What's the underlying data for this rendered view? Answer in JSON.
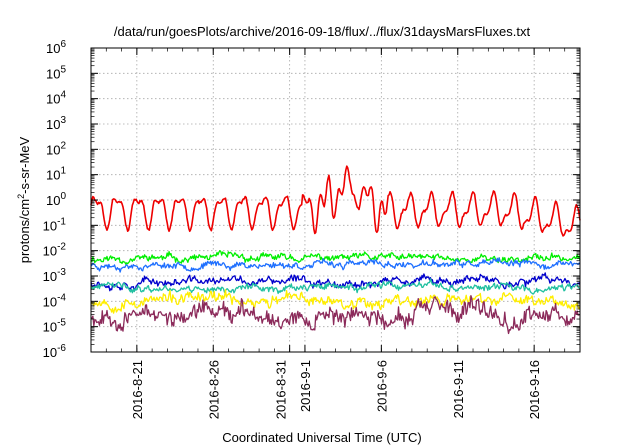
{
  "chart_data": {
    "type": "line",
    "title": "/data/run/goesPlots/archive/2016-09-18/flux/../flux/31daysMarsFluxes.txt",
    "xlabel": "Coordinated Universal Time (UTC)",
    "ylabel_parts": [
      "protons/cm",
      "2",
      "-s-sr-MeV"
    ],
    "yscale": "log",
    "ylim": [
      1e-06,
      1000000.0
    ],
    "y_ticks": [
      {
        "base": "10",
        "exp": "-6"
      },
      {
        "base": "10",
        "exp": "-5"
      },
      {
        "base": "10",
        "exp": "-4"
      },
      {
        "base": "10",
        "exp": "-3"
      },
      {
        "base": "10",
        "exp": "-2"
      },
      {
        "base": "10",
        "exp": "-1"
      },
      {
        "base": "10",
        "exp": "0"
      },
      {
        "base": "10",
        "exp": "1"
      },
      {
        "base": "10",
        "exp": "2"
      },
      {
        "base": "10",
        "exp": "3"
      },
      {
        "base": "10",
        "exp": "4"
      },
      {
        "base": "10",
        "exp": "5"
      },
      {
        "base": "10",
        "exp": "6"
      }
    ],
    "xlim": [
      "2016-08-18",
      "2016-09-19"
    ],
    "x_ticks": [
      {
        "date": "2016-08-21",
        "label": "2016-8-21"
      },
      {
        "date": "2016-08-26",
        "label": "2016-8-26"
      },
      {
        "date": "2016-08-31",
        "label": "2016-8-31"
      },
      {
        "date": "2016-09-01",
        "label": "2016-9-1"
      },
      {
        "date": "2016-09-06",
        "label": "2016-9-6"
      },
      {
        "date": "2016-09-11",
        "label": "2016-9-11"
      },
      {
        "date": "2016-09-16",
        "label": "2016-9-16"
      }
    ],
    "grid": true,
    "series": [
      {
        "color": "#00ee00",
        "level": 0.005,
        "jitter": 0.22,
        "seed": 11,
        "width": 1.3
      },
      {
        "color": "#1e6fff",
        "level": 0.0028,
        "jitter": 0.2,
        "seed": 23,
        "width": 1.3
      },
      {
        "color": "#0000cc",
        "level": 0.0006,
        "jitter": 0.25,
        "seed": 37,
        "width": 1.3
      },
      {
        "color": "#20c0a0",
        "level": 0.00035,
        "jitter": 0.22,
        "seed": 41,
        "width": 1.3
      },
      {
        "color": "#ffee00",
        "level": 0.00011,
        "jitter": 0.35,
        "seed": 53,
        "width": 1.3
      },
      {
        "color": "#8b2a5a",
        "level": 3e-05,
        "jitter": 0.55,
        "seed": 67,
        "width": 1.3
      },
      {
        "color": "#ee0000",
        "level": 0.4,
        "jitter": 0.0,
        "seed": 79,
        "width": 1.6,
        "pulsed": true
      }
    ]
  }
}
